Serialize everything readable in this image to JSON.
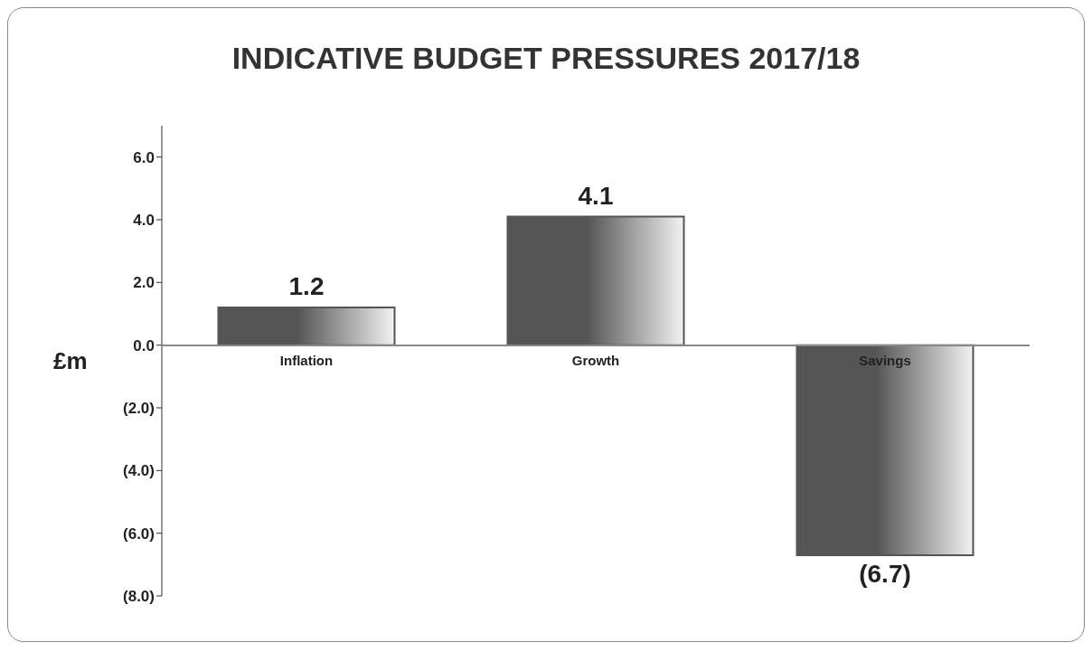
{
  "chart_data": {
    "type": "bar",
    "title": "INDICATIVE BUDGET PRESSURES 2017/18",
    "ylabel": "£m",
    "categories": [
      "Inflation",
      "Growth",
      "Savings"
    ],
    "values": [
      1.2,
      4.1,
      -6.7
    ],
    "color": "#555555",
    "value_labels": [
      "1.2",
      "4.1",
      "(6.7)"
    ],
    "ylim": [
      -8,
      7
    ],
    "yticks": [
      {
        "value": 6,
        "label": "6.0"
      },
      {
        "value": 4,
        "label": "4.0"
      },
      {
        "value": 2,
        "label": "2.0"
      },
      {
        "value": 0,
        "label": "0.0"
      },
      {
        "value": -2,
        "label": "(2.0)"
      },
      {
        "value": -4,
        "label": "(4.0)"
      },
      {
        "value": -6,
        "label": "(6.0)"
      },
      {
        "value": -8,
        "label": "(8.0)"
      }
    ],
    "grid": false,
    "legend": false
  }
}
